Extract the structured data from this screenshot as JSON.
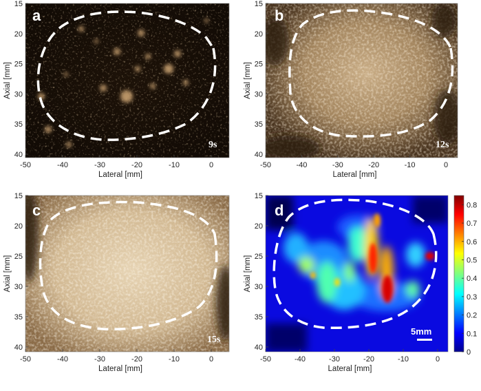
{
  "figure": {
    "x_axis_label": "Lateral [mm]",
    "y_axis_label": "Axial [mm]",
    "x_ticks": [
      "-50",
      "-40",
      "-30",
      "-20",
      "-10",
      "0"
    ],
    "y_ticks": [
      "15",
      "20",
      "25",
      "30",
      "35",
      "40"
    ],
    "panels": [
      {
        "id": "a",
        "letter": "a",
        "time": "9s",
        "style": "dark-contrast"
      },
      {
        "id": "b",
        "letter": "b",
        "time": "12s",
        "style": "mid-contrast"
      },
      {
        "id": "c",
        "letter": "c",
        "time": "15s",
        "style": "bright-contrast"
      },
      {
        "id": "d",
        "letter": "d",
        "scale_bar": "5mm",
        "style": "jet-heatmap"
      }
    ],
    "colorbar": {
      "ticks": [
        "0",
        "0.1",
        "0.2",
        "0.3",
        "0.4",
        "0.5",
        "0.6",
        "0.7",
        "0.8"
      ],
      "min": 0,
      "max": 0.85
    },
    "colors": {
      "bmode_dark": "#1a1108",
      "bmode_mid": "#7a5d3d",
      "bmode_bright": "#d9c3a0",
      "outline": "#ffffff"
    }
  }
}
